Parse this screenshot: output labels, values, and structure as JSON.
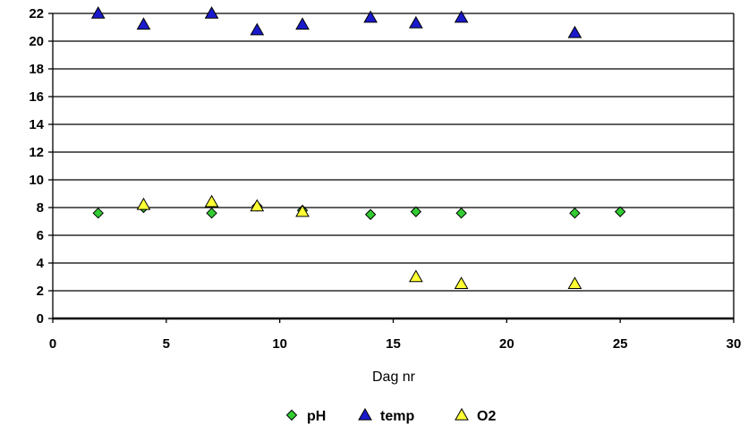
{
  "chart_data": {
    "type": "scatter",
    "xlabel": "Dag nr",
    "ylabel": "",
    "xlim": [
      0,
      30
    ],
    "ylim": [
      0,
      22
    ],
    "x_ticks": [
      0,
      5,
      10,
      15,
      20,
      25,
      30
    ],
    "y_ticks": [
      0,
      2,
      4,
      6,
      8,
      10,
      12,
      14,
      16,
      18,
      20,
      22
    ],
    "grid": "horizontal",
    "legend_position": "bottom",
    "series": [
      {
        "name": "pH",
        "marker": "diamond",
        "color": "#33cc33",
        "points": [
          {
            "x": 2,
            "y": 7.6
          },
          {
            "x": 4,
            "y": 8.0
          },
          {
            "x": 7,
            "y": 7.6
          },
          {
            "x": 9,
            "y": 8.1
          },
          {
            "x": 11,
            "y": 7.8
          },
          {
            "x": 14,
            "y": 7.5
          },
          {
            "x": 16,
            "y": 7.7
          },
          {
            "x": 18,
            "y": 7.6
          },
          {
            "x": 23,
            "y": 7.6
          },
          {
            "x": 25,
            "y": 7.7
          }
        ]
      },
      {
        "name": "temp",
        "marker": "triangle",
        "color": "#1a1acc",
        "points": [
          {
            "x": 2,
            "y": 22.0
          },
          {
            "x": 4,
            "y": 21.2
          },
          {
            "x": 7,
            "y": 22.0
          },
          {
            "x": 9,
            "y": 20.8
          },
          {
            "x": 11,
            "y": 21.2
          },
          {
            "x": 14,
            "y": 21.7
          },
          {
            "x": 16,
            "y": 21.3
          },
          {
            "x": 18,
            "y": 21.7
          },
          {
            "x": 23,
            "y": 20.6
          }
        ]
      },
      {
        "name": "O2",
        "marker": "triangle",
        "color": "#ffff33",
        "points": [
          {
            "x": 4,
            "y": 8.2
          },
          {
            "x": 7,
            "y": 8.4
          },
          {
            "x": 9,
            "y": 8.1
          },
          {
            "x": 11,
            "y": 7.7
          },
          {
            "x": 16,
            "y": 3.0
          },
          {
            "x": 18,
            "y": 2.5
          },
          {
            "x": 23,
            "y": 2.5
          }
        ]
      }
    ]
  }
}
